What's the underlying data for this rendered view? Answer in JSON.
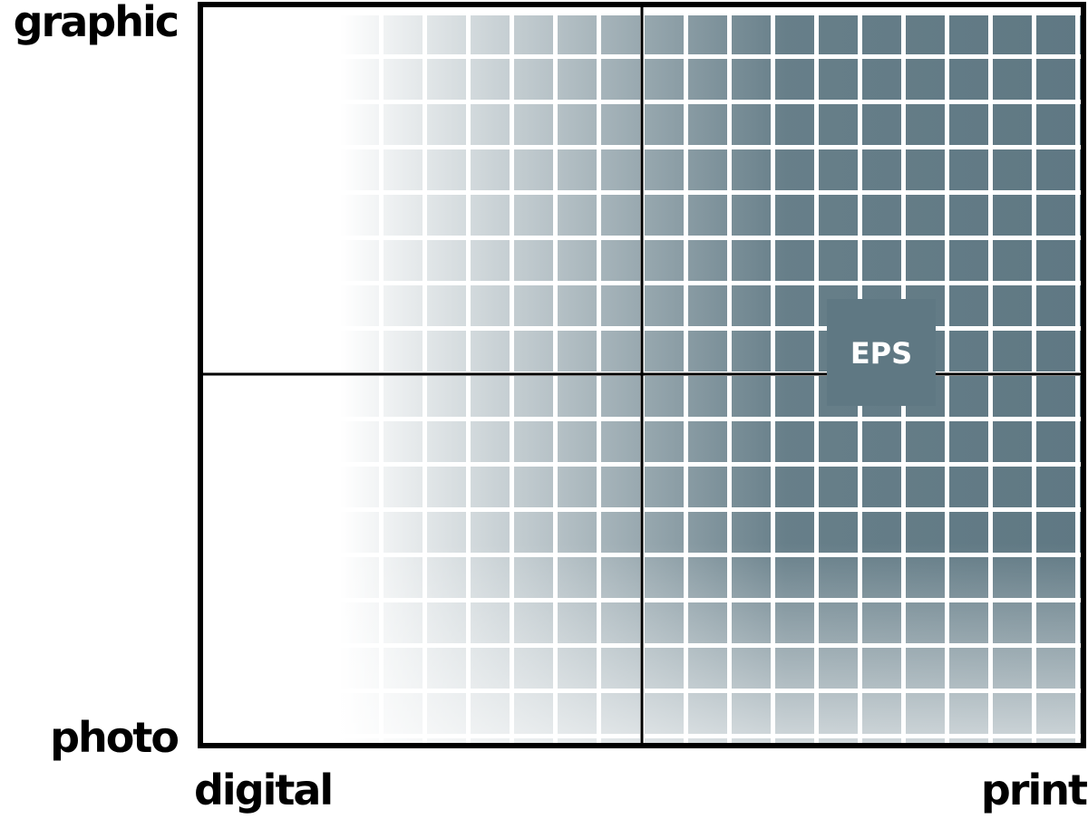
{
  "axes": {
    "top": "graphic",
    "bottom": "photo",
    "left": "digital",
    "right": "print"
  },
  "marker": {
    "label": "EPS"
  }
}
